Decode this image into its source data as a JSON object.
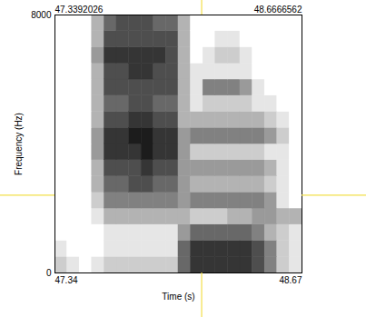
{
  "chart_data": {
    "type": "heatmap",
    "x_label": "Time (s)",
    "y_label": "Frequency (Hz)",
    "xlim": [
      47.3392026,
      48.6666562
    ],
    "xticks": [
      {
        "value": 47.3392026,
        "label": "47.34"
      },
      {
        "value": 48.6666562,
        "label": "48.67"
      }
    ],
    "x2ticks": [
      47.3392026,
      48.6666562
    ],
    "ylim": [
      0,
      8000
    ],
    "yticks": [
      0,
      8000
    ],
    "time_bins": [
      47.3392026,
      47.4056,
      47.4719,
      47.5383,
      47.6047,
      47.6711,
      47.7374,
      47.8038,
      47.8702,
      47.9366,
      48.0029,
      48.0693,
      48.1357,
      48.202,
      48.2684,
      48.3348,
      48.4012,
      48.4675,
      48.5339,
      48.6003,
      48.6666562
    ],
    "frequency_bins": [
      0,
      500,
      1000,
      1500,
      2000,
      2500,
      3000,
      3500,
      4000,
      4500,
      5000,
      5500,
      6000,
      6500,
      7000,
      7500,
      8000
    ],
    "zlim": [
      0,
      9
    ],
    "cells": [
      [
        2,
        1,
        0,
        1,
        2,
        2,
        2,
        2,
        2,
        2,
        6,
        8,
        8,
        8,
        8,
        8,
        7,
        5,
        2,
        1
      ],
      [
        1,
        0,
        0,
        0,
        1,
        1,
        1,
        1,
        1,
        1,
        6,
        8,
        8,
        8,
        8,
        8,
        7,
        5,
        2,
        1
      ],
      [
        0,
        0,
        0,
        0,
        1,
        1,
        1,
        1,
        1,
        1,
        4,
        6,
        6,
        6,
        6,
        6,
        5,
        3,
        2,
        1
      ],
      [
        0,
        0,
        0,
        1,
        3,
        3,
        3,
        3,
        3,
        3,
        3,
        2,
        2,
        2,
        3,
        3,
        4,
        4,
        3,
        3
      ],
      [
        0,
        0,
        0,
        2,
        5,
        5,
        5,
        5,
        5,
        5,
        4,
        5,
        5,
        5,
        5,
        5,
        5,
        4,
        1,
        0
      ],
      [
        0,
        0,
        0,
        3,
        6,
        6,
        7,
        7,
        6,
        6,
        4,
        3,
        3,
        3,
        3,
        3,
        3,
        2,
        1,
        0
      ],
      [
        0,
        0,
        0,
        3,
        7,
        7,
        7,
        8,
        7,
        7,
        4,
        4,
        4,
        4,
        4,
        4,
        4,
        3,
        1,
        0
      ],
      [
        0,
        0,
        0,
        4,
        8,
        8,
        8,
        9,
        8,
        8,
        4,
        2,
        2,
        2,
        2,
        2,
        2,
        1,
        1,
        0
      ],
      [
        0,
        0,
        0,
        4,
        8,
        8,
        9,
        9,
        8,
        8,
        4,
        5,
        5,
        5,
        5,
        5,
        5,
        4,
        2,
        0
      ],
      [
        0,
        0,
        0,
        3,
        7,
        7,
        8,
        8,
        7,
        7,
        3,
        3,
        3,
        3,
        3,
        3,
        3,
        2,
        1,
        0
      ],
      [
        0,
        0,
        0,
        3,
        6,
        6,
        7,
        7,
        6,
        6,
        3,
        1,
        2,
        2,
        2,
        2,
        1,
        1,
        0,
        0
      ],
      [
        0,
        0,
        0,
        3,
        7,
        7,
        7,
        7,
        7,
        7,
        3,
        1,
        5,
        5,
        5,
        4,
        1,
        0,
        0,
        0
      ],
      [
        0,
        0,
        0,
        3,
        7,
        7,
        8,
        8,
        7,
        7,
        3,
        1,
        1,
        1,
        1,
        1,
        0,
        0,
        0,
        0
      ],
      [
        0,
        0,
        0,
        4,
        8,
        8,
        8,
        8,
        8,
        7,
        3,
        0,
        1,
        2,
        2,
        1,
        0,
        0,
        0,
        0
      ],
      [
        0,
        0,
        0,
        3,
        7,
        7,
        7,
        7,
        7,
        7,
        3,
        0,
        0,
        1,
        1,
        0,
        0,
        0,
        0,
        0
      ],
      [
        0,
        0,
        0,
        3,
        6,
        7,
        7,
        7,
        6,
        6,
        3,
        0,
        0,
        0,
        0,
        0,
        0,
        0,
        0,
        0
      ]
    ],
    "cursor": {
      "x": 48.13,
      "y": 2400
    }
  }
}
